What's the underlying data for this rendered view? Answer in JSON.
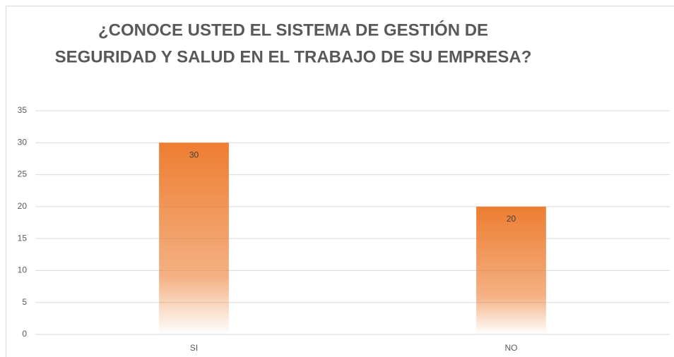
{
  "chart_data": {
    "type": "bar",
    "title": [
      "¿CONOCE USTED EL SISTEMA DE GESTIÓN DE",
      "SEGURIDAD Y SALUD EN EL TRABAJO DE SU EMPRESA?"
    ],
    "categories": [
      "SI",
      "NO"
    ],
    "values": [
      30,
      20
    ],
    "color": "#ED7D31",
    "ylim": [
      0,
      35
    ],
    "yticks": [
      0,
      5,
      10,
      15,
      20,
      25,
      30,
      35
    ],
    "grid": true
  }
}
